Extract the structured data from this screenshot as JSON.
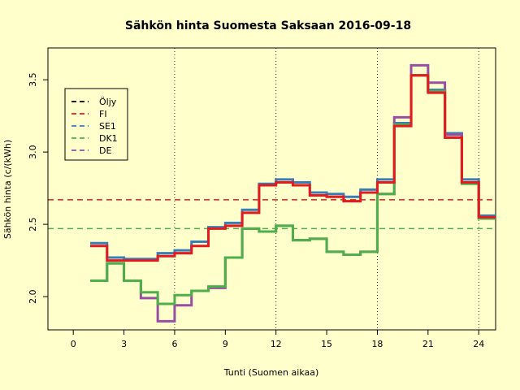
{
  "chart_data": {
    "type": "line",
    "step": true,
    "title": "Sähkön hinta Suomesta Saksaan 2016-09-18",
    "xlabel": "Tunti (Suomen aikaa)",
    "ylabel": "Sähkön hinta (c/(kWh)",
    "xlim": [
      -1.5,
      25
    ],
    "ylim": [
      1.77,
      3.72
    ],
    "x_ticks": [
      0,
      3,
      6,
      9,
      12,
      15,
      18,
      21,
      24
    ],
    "y_ticks": [
      2.0,
      2.5,
      3.0,
      3.5
    ],
    "grid": "vertical dotted lines at 6, 12, 18, 24",
    "legend_position": "top-left",
    "legend": [
      {
        "name": "Öljy",
        "color": "#000000"
      },
      {
        "name": "FI",
        "color": "#e41a1c"
      },
      {
        "name": "SE1",
        "color": "#377eb8"
      },
      {
        "name": "DK1",
        "color": "#4daf4a"
      },
      {
        "name": "DE",
        "color": "#984ea3"
      }
    ],
    "reference_lines": [
      {
        "y": 2.67,
        "color": "#e41a1c"
      },
      {
        "y": 2.47,
        "color": "#4daf4a"
      }
    ],
    "hours": [
      1,
      2,
      3,
      4,
      5,
      6,
      7,
      8,
      9,
      10,
      11,
      12,
      13,
      14,
      15,
      16,
      17,
      18,
      19,
      20,
      21,
      22,
      23,
      24
    ],
    "series": [
      {
        "name": "SE1",
        "color": "#377eb8",
        "values": [
          2.37,
          2.27,
          2.26,
          2.26,
          2.3,
          2.32,
          2.38,
          2.48,
          2.51,
          2.6,
          2.78,
          2.81,
          2.79,
          2.72,
          2.71,
          2.69,
          2.74,
          2.81,
          3.2,
          3.53,
          3.43,
          3.13,
          2.81,
          2.56
        ]
      },
      {
        "name": "DE",
        "color": "#984ea3",
        "values": [
          2.11,
          2.23,
          2.11,
          1.99,
          1.83,
          1.94,
          2.04,
          2.06,
          2.27,
          2.47,
          2.45,
          2.49,
          2.39,
          2.4,
          2.31,
          2.29,
          2.31,
          2.71,
          3.24,
          3.6,
          3.48,
          3.12,
          2.79,
          2.54
        ]
      },
      {
        "name": "DK1",
        "color": "#4daf4a",
        "values": [
          2.11,
          2.23,
          2.11,
          2.03,
          1.95,
          2.01,
          2.04,
          2.07,
          2.27,
          2.47,
          2.45,
          2.49,
          2.39,
          2.4,
          2.31,
          2.29,
          2.31,
          2.71,
          3.19,
          3.53,
          3.42,
          3.1,
          2.78,
          2.54
        ]
      },
      {
        "name": "FI",
        "color": "#e41a1c",
        "values": [
          2.35,
          2.25,
          2.25,
          2.25,
          2.28,
          2.3,
          2.35,
          2.47,
          2.49,
          2.58,
          2.77,
          2.79,
          2.77,
          2.7,
          2.69,
          2.66,
          2.72,
          2.79,
          3.18,
          3.53,
          3.41,
          3.1,
          2.79,
          2.55
        ]
      }
    ]
  }
}
